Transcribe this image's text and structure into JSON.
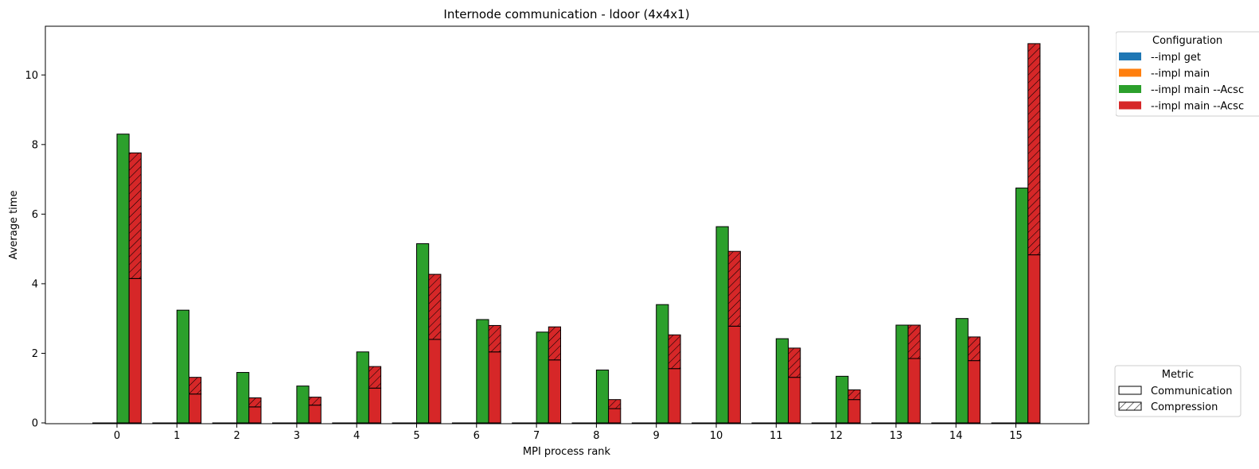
{
  "chart_data": {
    "type": "bar",
    "title": "Internode communication - ldoor (4x4x1)",
    "xlabel": "MPI process rank",
    "ylabel": "Average time",
    "categories": [
      "0",
      "1",
      "2",
      "3",
      "4",
      "5",
      "6",
      "7",
      "8",
      "9",
      "10",
      "11",
      "12",
      "13",
      "14",
      "15"
    ],
    "ylim": [
      0,
      11.4
    ],
    "yticks": [
      0,
      2,
      4,
      6,
      8,
      10
    ],
    "grid": false,
    "series": [
      {
        "name": "--impl get",
        "color": "#1f77b4",
        "communication": [
          0,
          0,
          0,
          0,
          0,
          0,
          0,
          0,
          0,
          0,
          0,
          0,
          0,
          0,
          0,
          0
        ],
        "compression": [
          0,
          0,
          0,
          0,
          0,
          0,
          0,
          0,
          0,
          0,
          0,
          0,
          0,
          0,
          0,
          0
        ]
      },
      {
        "name": "--impl main",
        "color": "#ff7f0e",
        "communication": [
          0,
          0,
          0,
          0,
          0,
          0,
          0,
          0,
          0,
          0,
          0,
          0,
          0,
          0,
          0,
          0
        ],
        "compression": [
          0,
          0,
          0,
          0,
          0,
          0,
          0,
          0,
          0,
          0,
          0,
          0,
          0,
          0,
          0,
          0
        ]
      },
      {
        "name": "--impl main --Acsc",
        "color": "#2ca02c",
        "communication": [
          8.3,
          3.24,
          1.45,
          1.06,
          2.04,
          5.15,
          2.97,
          2.61,
          1.52,
          3.4,
          5.64,
          2.42,
          1.34,
          2.81,
          3.0,
          6.75
        ],
        "compression": [
          0,
          0,
          0,
          0,
          0,
          0,
          0,
          0,
          0,
          0,
          0,
          0,
          0,
          0,
          0,
          0
        ]
      },
      {
        "name": "--impl main --Acsc",
        "color": "#d62728",
        "communication": [
          4.15,
          0.83,
          0.46,
          0.51,
          1.0,
          2.4,
          2.04,
          1.81,
          0.41,
          1.56,
          2.78,
          1.31,
          0.67,
          1.85,
          1.79,
          4.83
        ],
        "compression": [
          3.61,
          0.48,
          0.26,
          0.23,
          0.62,
          1.87,
          0.76,
          0.95,
          0.26,
          0.97,
          2.15,
          0.84,
          0.28,
          0.96,
          0.68,
          6.07
        ]
      }
    ],
    "legend_configuration": {
      "title": "Configuration",
      "placement": "top-right outside",
      "entries": [
        "--impl get",
        "--impl main",
        "--impl main --Acsc",
        "--impl main --Acsc"
      ]
    },
    "legend_metric": {
      "title": "Metric",
      "placement": "bottom-right outside",
      "entries": [
        "Communication",
        "Compression"
      ]
    }
  }
}
